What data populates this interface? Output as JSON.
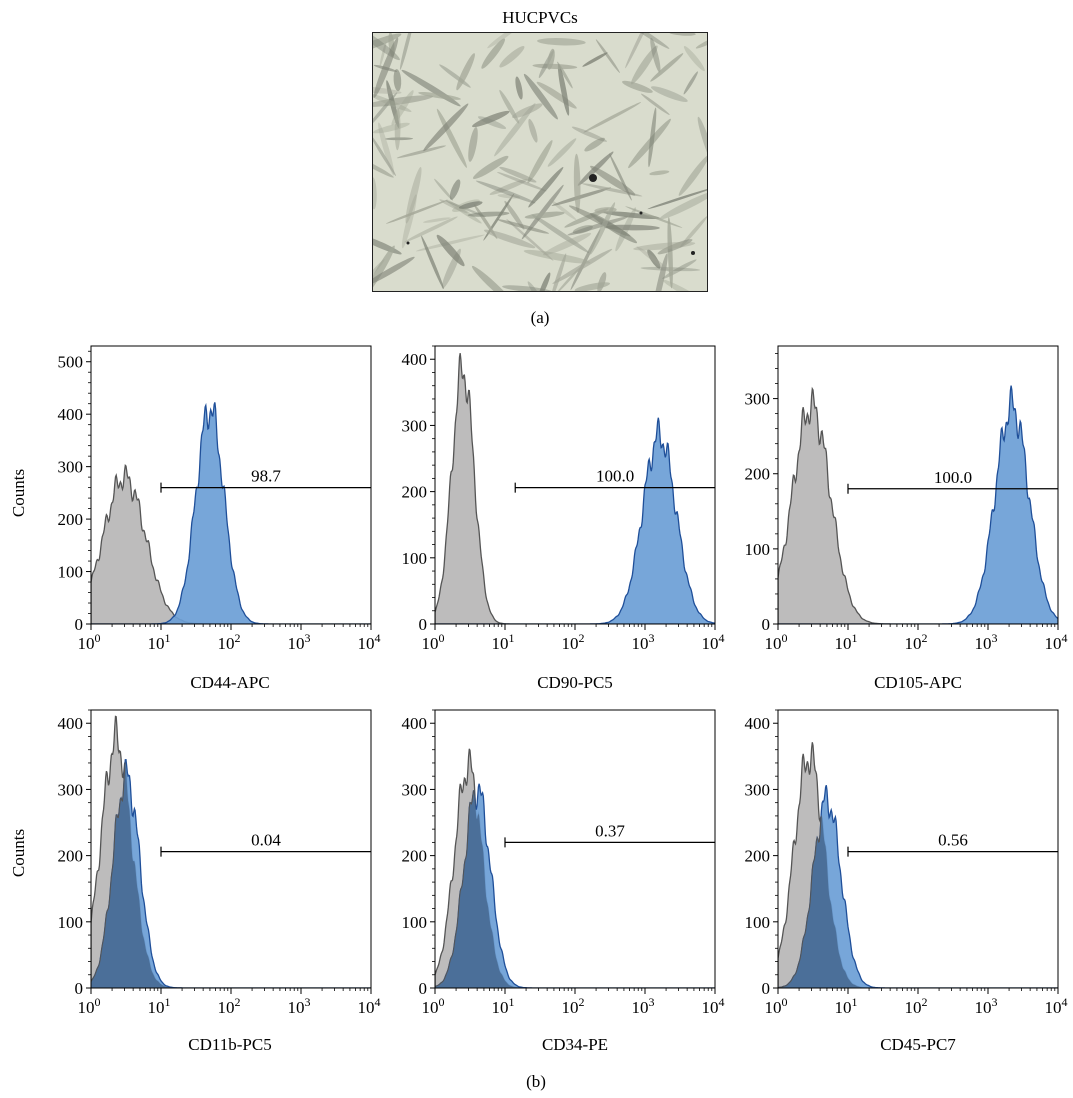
{
  "figure": {
    "panel_a_title": "HUCPVCs",
    "panel_a_label": "(a)",
    "panel_b_label": "(b)",
    "row_ylabel": "Counts",
    "colors": {
      "control": "#bdbcbc",
      "control_edge": "#555555",
      "sample": "#6b9ed6",
      "sample_edge": "#1f4f99",
      "overlap": "#4b6f99"
    }
  },
  "chart_data": [
    {
      "type": "area",
      "xlabel": "CD44-APC",
      "ylabel": "Counts",
      "xscale": "log",
      "xlim": [
        1,
        10000
      ],
      "ylim": [
        0,
        530
      ],
      "yticks": [
        0,
        100,
        200,
        300,
        400,
        500
      ],
      "gate_value": "98.7",
      "gate_start": 10,
      "gate_y": 260,
      "series": [
        {
          "peak_x": 3,
          "peak_y": 280,
          "width": 0.3
        },
        {
          "peak_x": 50,
          "peak_y": 410,
          "width": 0.2
        }
      ]
    },
    {
      "type": "area",
      "xlabel": "CD90-PC5",
      "ylabel": "Counts",
      "xscale": "log",
      "xlim": [
        1,
        10000
      ],
      "ylim": [
        0,
        420
      ],
      "yticks": [
        0,
        100,
        200,
        300,
        400
      ],
      "gate_value": "100.0",
      "gate_start": 14,
      "gate_y": 206,
      "series": [
        {
          "peak_x": 2.5,
          "peak_y": 385,
          "width": 0.16
        },
        {
          "peak_x": 1600,
          "peak_y": 285,
          "width": 0.24
        }
      ]
    },
    {
      "type": "area",
      "xlabel": "CD105-APC",
      "ylabel": "Counts",
      "xscale": "log",
      "xlim": [
        1,
        10000
      ],
      "ylim": [
        0,
        370
      ],
      "yticks": [
        0,
        100,
        200,
        300
      ],
      "gate_value": "100.0",
      "gate_start": 10,
      "gate_y": 180,
      "series": [
        {
          "peak_x": 3,
          "peak_y": 290,
          "width": 0.27
        },
        {
          "peak_x": 2200,
          "peak_y": 290,
          "width": 0.24
        }
      ]
    },
    {
      "type": "area",
      "xlabel": "CD11b-PC5",
      "ylabel": "Counts",
      "xscale": "log",
      "xlim": [
        1,
        10000
      ],
      "ylim": [
        0,
        420
      ],
      "yticks": [
        0,
        100,
        200,
        300,
        400
      ],
      "gate_value": "0.04",
      "gate_start": 10,
      "gate_y": 206,
      "series": [
        {
          "peak_x": 2.3,
          "peak_y": 375,
          "width": 0.22
        },
        {
          "peak_x": 3.2,
          "peak_y": 320,
          "width": 0.19
        }
      ]
    },
    {
      "type": "area",
      "xlabel": "CD34-PE",
      "ylabel": "Counts",
      "xscale": "log",
      "xlim": [
        1,
        10000
      ],
      "ylim": [
        0,
        420
      ],
      "yticks": [
        0,
        100,
        200,
        300,
        400
      ],
      "gate_value": "0.37",
      "gate_start": 10,
      "gate_y": 220,
      "series": [
        {
          "peak_x": 3.0,
          "peak_y": 335,
          "width": 0.2
        },
        {
          "peak_x": 4.0,
          "peak_y": 300,
          "width": 0.19
        }
      ]
    },
    {
      "type": "area",
      "xlabel": "CD45-PC7",
      "ylabel": "Counts",
      "xscale": "log",
      "xlim": [
        1,
        10000
      ],
      "ylim": [
        0,
        420
      ],
      "yticks": [
        0,
        100,
        200,
        300,
        400
      ],
      "gate_value": "0.56",
      "gate_start": 10,
      "gate_y": 206,
      "series": [
        {
          "peak_x": 2.8,
          "peak_y": 350,
          "width": 0.22
        },
        {
          "peak_x": 5.0,
          "peak_y": 285,
          "width": 0.2
        }
      ]
    }
  ]
}
